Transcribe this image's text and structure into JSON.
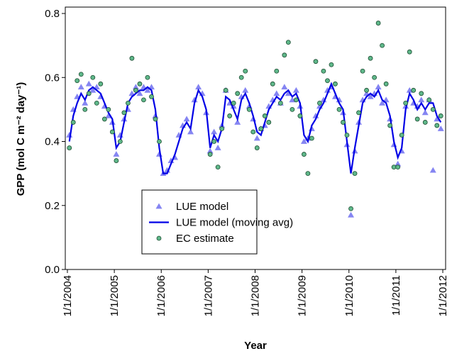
{
  "chart_data": {
    "type": "line",
    "xlabel": "Year",
    "ylabel": "GPP (mol C m⁻² day⁻¹)",
    "xlim": [
      2003.955,
      2012.06
    ],
    "xticks": [
      {
        "value": 2004,
        "label": "1/1/2004"
      },
      {
        "value": 2005,
        "label": "1/1/2005"
      },
      {
        "value": 2006,
        "label": "1/1/2006"
      },
      {
        "value": 2007,
        "label": "1/1/2007"
      },
      {
        "value": 2008,
        "label": "1/1/2008"
      },
      {
        "value": 2009,
        "label": "1/1/2009"
      },
      {
        "value": 2010,
        "label": "1/1/2010"
      },
      {
        "value": 2011,
        "label": "1/1/2011"
      },
      {
        "value": 2012,
        "label": "1/1/2012"
      }
    ],
    "ylim": [
      0,
      0.82
    ],
    "yticks": [
      {
        "value": 0,
        "label": "0.0"
      },
      0.2,
      0.4,
      0.6,
      0.8
    ],
    "legend": "lower-left",
    "x": [
      2004.042,
      2004.125,
      2004.208,
      2004.292,
      2004.375,
      2004.458,
      2004.542,
      2004.625,
      2004.708,
      2004.792,
      2004.875,
      2004.958,
      2005.042,
      2005.125,
      2005.208,
      2005.292,
      2005.375,
      2005.458,
      2005.542,
      2005.625,
      2005.708,
      2005.792,
      2005.875,
      2005.958,
      2006.042,
      2006.125,
      2006.208,
      2006.292,
      2006.375,
      2006.458,
      2006.542,
      2006.625,
      2006.708,
      2006.792,
      2006.875,
      2006.958,
      2007.042,
      2007.125,
      2007.208,
      2007.292,
      2007.375,
      2007.458,
      2007.542,
      2007.625,
      2007.708,
      2007.792,
      2007.875,
      2007.958,
      2008.042,
      2008.125,
      2008.208,
      2008.292,
      2008.375,
      2008.458,
      2008.542,
      2008.625,
      2008.708,
      2008.792,
      2008.875,
      2008.958,
      2009.042,
      2009.125,
      2009.208,
      2009.292,
      2009.375,
      2009.458,
      2009.542,
      2009.625,
      2009.708,
      2009.792,
      2009.875,
      2009.958,
      2010.042,
      2010.125,
      2010.208,
      2010.292,
      2010.375,
      2010.458,
      2010.542,
      2010.625,
      2010.708,
      2010.792,
      2010.875,
      2010.958,
      2011.042,
      2011.125,
      2011.208,
      2011.292,
      2011.375,
      2011.458,
      2011.542,
      2011.625,
      2011.708,
      2011.792,
      2011.875,
      2011.958
    ],
    "series": [
      {
        "name": "LUE model",
        "type": "scatter",
        "marker": "triangle",
        "color": "#7070f0",
        "values": [
          0.42,
          0.5,
          0.54,
          0.57,
          0.52,
          0.58,
          0.56,
          0.57,
          0.54,
          0.51,
          0.48,
          0.46,
          0.36,
          0.42,
          0.47,
          0.5,
          0.55,
          0.57,
          0.55,
          0.57,
          0.56,
          0.57,
          0.48,
          0.36,
          0.3,
          0.31,
          0.34,
          0.35,
          0.42,
          0.45,
          0.47,
          0.43,
          0.53,
          0.57,
          0.55,
          0.49,
          0.37,
          0.43,
          0.38,
          0.45,
          0.56,
          0.52,
          0.51,
          0.46,
          0.54,
          0.56,
          0.51,
          0.47,
          0.41,
          0.44,
          0.45,
          0.51,
          0.53,
          0.55,
          0.52,
          0.57,
          0.55,
          0.53,
          0.56,
          0.51,
          0.4,
          0.41,
          0.44,
          0.48,
          0.51,
          0.53,
          0.56,
          0.57,
          0.54,
          0.53,
          0.49,
          0.39,
          0.17,
          0.37,
          0.46,
          0.53,
          0.55,
          0.54,
          0.55,
          0.57,
          0.52,
          0.53,
          0.47,
          0.39,
          0.33,
          0.37,
          0.51,
          0.56,
          0.52,
          0.51,
          0.53,
          0.49,
          0.53,
          0.31,
          0.47,
          0.44
        ]
      },
      {
        "name": "LUE model (moving avg)",
        "type": "line",
        "color": "#0000e6",
        "values": [
          0.4,
          0.48,
          0.52,
          0.55,
          0.53,
          0.56,
          0.57,
          0.56,
          0.55,
          0.52,
          0.49,
          0.47,
          0.38,
          0.4,
          0.46,
          0.52,
          0.54,
          0.55,
          0.56,
          0.56,
          0.57,
          0.56,
          0.5,
          0.38,
          0.3,
          0.3,
          0.33,
          0.36,
          0.4,
          0.44,
          0.46,
          0.44,
          0.52,
          0.56,
          0.54,
          0.5,
          0.38,
          0.42,
          0.4,
          0.44,
          0.54,
          0.53,
          0.5,
          0.47,
          0.53,
          0.55,
          0.52,
          0.48,
          0.43,
          0.42,
          0.46,
          0.5,
          0.52,
          0.54,
          0.53,
          0.55,
          0.56,
          0.54,
          0.55,
          0.52,
          0.42,
          0.4,
          0.45,
          0.47,
          0.5,
          0.52,
          0.55,
          0.58,
          0.55,
          0.52,
          0.5,
          0.4,
          0.3,
          0.38,
          0.45,
          0.52,
          0.54,
          0.55,
          0.54,
          0.56,
          0.53,
          0.52,
          0.48,
          0.4,
          0.35,
          0.38,
          0.5,
          0.55,
          0.53,
          0.5,
          0.52,
          0.5,
          0.52,
          0.52,
          0.48,
          0.46
        ]
      },
      {
        "name": "EC estimate",
        "type": "scatter",
        "marker": "circle",
        "color": "#5fb88a",
        "values": [
          0.38,
          0.46,
          0.59,
          0.61,
          0.5,
          0.55,
          0.6,
          0.52,
          0.58,
          0.47,
          0.5,
          0.43,
          0.34,
          0.4,
          0.49,
          0.52,
          0.66,
          0.56,
          0.58,
          0.53,
          0.6,
          0.54,
          0.47,
          0.4,
          null,
          null,
          null,
          null,
          null,
          null,
          null,
          null,
          null,
          null,
          null,
          null,
          0.36,
          0.4,
          0.32,
          0.44,
          0.56,
          0.48,
          0.52,
          0.55,
          0.6,
          0.62,
          0.5,
          0.43,
          0.38,
          0.44,
          0.48,
          0.46,
          0.58,
          0.62,
          0.52,
          0.67,
          0.71,
          0.5,
          0.53,
          0.48,
          0.36,
          0.3,
          0.41,
          0.65,
          0.52,
          0.62,
          0.59,
          0.64,
          0.58,
          0.5,
          0.46,
          0.42,
          0.19,
          0.3,
          0.49,
          0.62,
          0.56,
          0.66,
          0.6,
          0.77,
          0.7,
          0.58,
          0.45,
          0.32,
          0.32,
          0.42,
          0.52,
          0.68,
          0.56,
          0.47,
          0.55,
          0.46,
          0.53,
          0.5,
          0.45,
          0.48
        ]
      }
    ]
  }
}
